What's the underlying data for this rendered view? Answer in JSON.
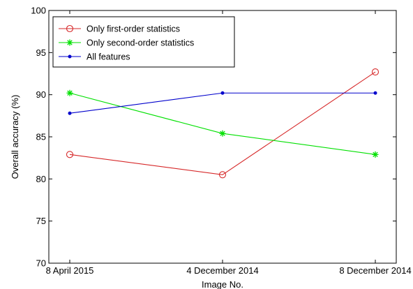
{
  "chart_data": {
    "type": "line",
    "title": "",
    "xlabel": "Image No.",
    "ylabel": "Overall accuracy (%)",
    "categories": [
      "8 April 2015",
      "4 December 2014",
      "8 December 2014"
    ],
    "ylim": [
      70,
      100
    ],
    "yticks": [
      "70",
      "75",
      "80",
      "85",
      "90",
      "95",
      "100"
    ],
    "grid": false,
    "legend_position": "top-left",
    "series": [
      {
        "name": "Only first-order statistics",
        "values": [
          82.9,
          80.5,
          92.7
        ],
        "color": "#d62728",
        "marker": "circle"
      },
      {
        "name": "Only second-order statistics",
        "values": [
          90.2,
          85.4,
          82.9
        ],
        "color": "#00e000",
        "marker": "asterisk"
      },
      {
        "name": "All features",
        "values": [
          87.8,
          90.2,
          90.2
        ],
        "color": "#0000cc",
        "marker": "dot"
      }
    ]
  }
}
